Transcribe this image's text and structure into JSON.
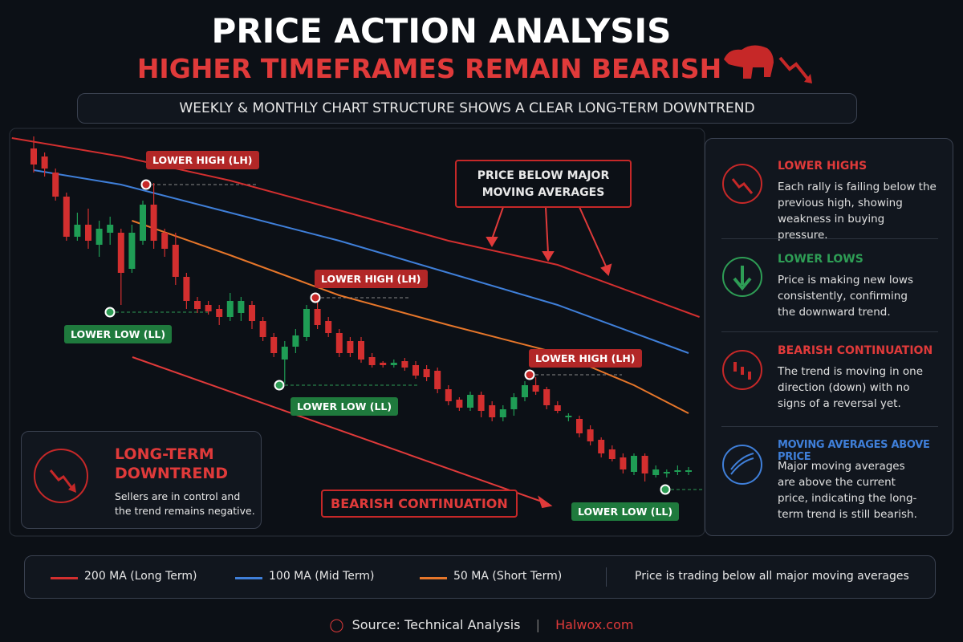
{
  "header": {
    "title": "PRICE ACTION ANALYSIS",
    "subtitle": "HIGHER TIMEFRAMES REMAIN BEARISH",
    "banner": "WEEKLY & MONTHLY CHART STRUCTURE SHOWS A CLEAR LONG-TERM DOWNTREND"
  },
  "chart_data": {
    "type": "candlestick",
    "open": [
      455,
      445,
      425,
      395,
      345,
      360,
      335,
      350,
      350,
      305,
      340,
      385,
      350,
      335,
      295,
      265,
      260,
      255,
      245,
      250,
      260,
      240,
      220,
      192,
      208,
      220,
      255,
      240,
      225,
      215,
      215,
      195,
      188,
      185,
      190,
      185,
      180,
      178,
      155,
      142,
      132,
      148,
      135,
      120,
      130,
      145,
      160,
      155,
      135,
      120,
      118,
      105,
      92,
      80,
      70,
      52,
      72,
      48,
      50,
      52,
      52
    ],
    "high": [
      470,
      450,
      430,
      400,
      375,
      380,
      365,
      370,
      355,
      360,
      390,
      412,
      355,
      350,
      300,
      270,
      265,
      260,
      275,
      270,
      265,
      245,
      225,
      215,
      230,
      260,
      270,
      245,
      230,
      220,
      220,
      200,
      190,
      192,
      194,
      190,
      185,
      182,
      160,
      145,
      152,
      152,
      140,
      135,
      150,
      165,
      170,
      158,
      140,
      125,
      122,
      110,
      95,
      85,
      75,
      75,
      75,
      60,
      55,
      60,
      58
    ],
    "low": [
      425,
      420,
      390,
      340,
      340,
      330,
      320,
      335,
      260,
      300,
      335,
      330,
      320,
      285,
      255,
      250,
      248,
      235,
      240,
      240,
      230,
      215,
      195,
      162,
      200,
      215,
      230,
      220,
      195,
      195,
      188,
      182,
      182,
      182,
      178,
      168,
      165,
      150,
      135,
      128,
      128,
      120,
      115,
      115,
      122,
      140,
      148,
      130,
      125,
      115,
      95,
      85,
      70,
      65,
      50,
      48,
      40,
      45,
      45,
      48,
      48
    ],
    "close": [
      435,
      430,
      395,
      345,
      360,
      340,
      355,
      360,
      300,
      350,
      385,
      340,
      330,
      295,
      265,
      255,
      252,
      245,
      265,
      265,
      240,
      220,
      200,
      208,
      222,
      255,
      235,
      225,
      200,
      200,
      192,
      185,
      185,
      188,
      182,
      172,
      170,
      155,
      140,
      132,
      148,
      128,
      120,
      130,
      145,
      160,
      152,
      135,
      128,
      122,
      100,
      90,
      75,
      68,
      55,
      72,
      50,
      55,
      52,
      54,
      54
    ],
    "up_color": "#1f9d55",
    "down_color": "#d32f2f",
    "series": [
      {
        "name": "200 MA (Long Term)",
        "color": "#d32f2f",
        "x": [
          -2,
          8,
          18,
          28,
          38,
          48,
          61
        ],
        "values": [
          468,
          445,
          415,
          378,
          340,
          310,
          245
        ]
      },
      {
        "name": "100 MA (Mid Term)",
        "color": "#3f7fd9",
        "x": [
          0,
          8,
          18,
          28,
          38,
          48,
          60
        ],
        "values": [
          428,
          410,
          375,
          340,
          300,
          260,
          200
        ]
      },
      {
        "name": "50 MA (Short Term)",
        "color": "#e6762a",
        "x": [
          9,
          18,
          28,
          38,
          48,
          55,
          60
        ],
        "values": [
          365,
          322,
          272,
          235,
          200,
          160,
          125
        ]
      }
    ],
    "annotations": [
      "LOWER HIGH (LH)",
      "LOWER LOW (LL)",
      "LOWER HIGH (LH)",
      "LOWER LOW (LL)",
      "LOWER HIGH (LH)",
      "LOWER LOW (LL)",
      "PRICE BELOW MAJOR MOVING AVERAGES",
      "BEARISH CONTINUATION"
    ],
    "legend_note": "Price is trading below all major moving averages"
  },
  "summary": {
    "title": "LONG-TERM DOWNTREND",
    "text": "Sellers are in control and the trend remains negative."
  },
  "panel": [
    {
      "title": "LOWER HIGHS",
      "text": "Each rally is failing below the previous high, showing weakness in buying pressure."
    },
    {
      "title": "LOWER LOWS",
      "text": "Price is making new lows consistently, confirming the downward trend."
    },
    {
      "title": "BEARISH CONTINUATION",
      "text": "The trend is moving in one direction (down) with no signs of a reversal yet."
    },
    {
      "title": "MOVING AVERAGES ABOVE PRICE",
      "text": "Major moving averages are above the current price, indicating the long-term trend is still bearish."
    }
  ],
  "footer": {
    "source": "Source: Technical Analysis",
    "site": "Halwox.com"
  }
}
